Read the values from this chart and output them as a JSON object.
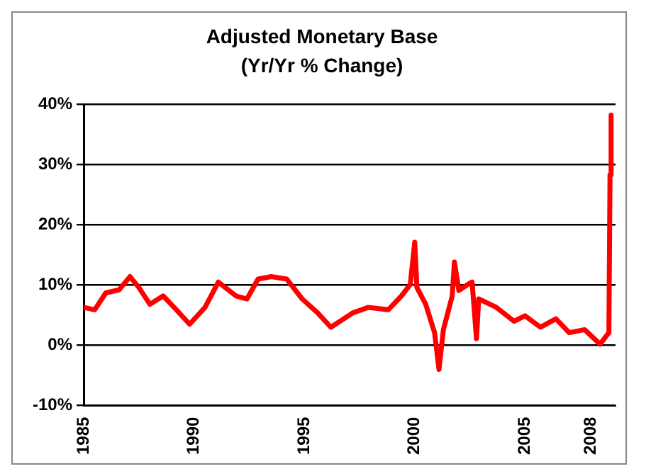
{
  "chart_data": {
    "type": "line",
    "title": "Adjusted Monetary Base",
    "subtitle": "(Yr/Yr % Change)",
    "x": [
      1985.0,
      1985.5,
      1986.0,
      1986.6,
      1987.1,
      1987.5,
      1988.0,
      1988.6,
      1989.2,
      1989.8,
      1990.5,
      1991.1,
      1991.9,
      1992.4,
      1992.9,
      1993.5,
      1994.2,
      1994.9,
      1995.6,
      1996.2,
      1997.2,
      1997.9,
      1998.8,
      1999.4,
      1999.8,
      2000.0,
      2000.1,
      2000.5,
      2000.9,
      2001.1,
      2001.3,
      2001.7,
      2001.8,
      2002.0,
      2002.4,
      2002.6,
      2002.8,
      2002.9,
      2003.7,
      2004.5,
      2005.0,
      2005.7,
      2006.4,
      2007.0,
      2007.7,
      2008.4,
      2008.8,
      2008.85,
      2008.9
    ],
    "series": [
      {
        "color": "#ff0000",
        "values": [
          6.3,
          5.9,
          8.7,
          9.2,
          11.4,
          9.6,
          6.8,
          8.2,
          5.9,
          3.5,
          6.3,
          10.5,
          8.2,
          7.7,
          11.0,
          11.4,
          11.0,
          7.7,
          5.4,
          3.0,
          5.4,
          6.3,
          5.9,
          8.2,
          10.1,
          17.1,
          9.6,
          6.8,
          2.1,
          -4.0,
          2.6,
          8.2,
          13.8,
          9.1,
          10.1,
          10.5,
          1.1,
          7.7,
          6.3,
          4.0,
          4.9,
          3.0,
          4.4,
          2.1,
          2.6,
          0.2,
          2.1,
          28.3,
          38.2
        ]
      }
    ],
    "xlim": [
      1985,
      2009.1
    ],
    "xticks": [
      1985,
      1990,
      1995,
      2000,
      2005,
      2008
    ],
    "ylim": [
      -10,
      40
    ],
    "yticks": [
      {
        "value": -10,
        "label": "-10%"
      },
      {
        "value": 0,
        "label": "0%"
      },
      {
        "value": 10,
        "label": "10%"
      },
      {
        "value": 20,
        "label": "20%"
      },
      {
        "value": 30,
        "label": "30%"
      },
      {
        "value": 40,
        "label": "40%"
      }
    ],
    "grid": "y",
    "legend": false,
    "marker": "none",
    "line_style": "solid"
  }
}
